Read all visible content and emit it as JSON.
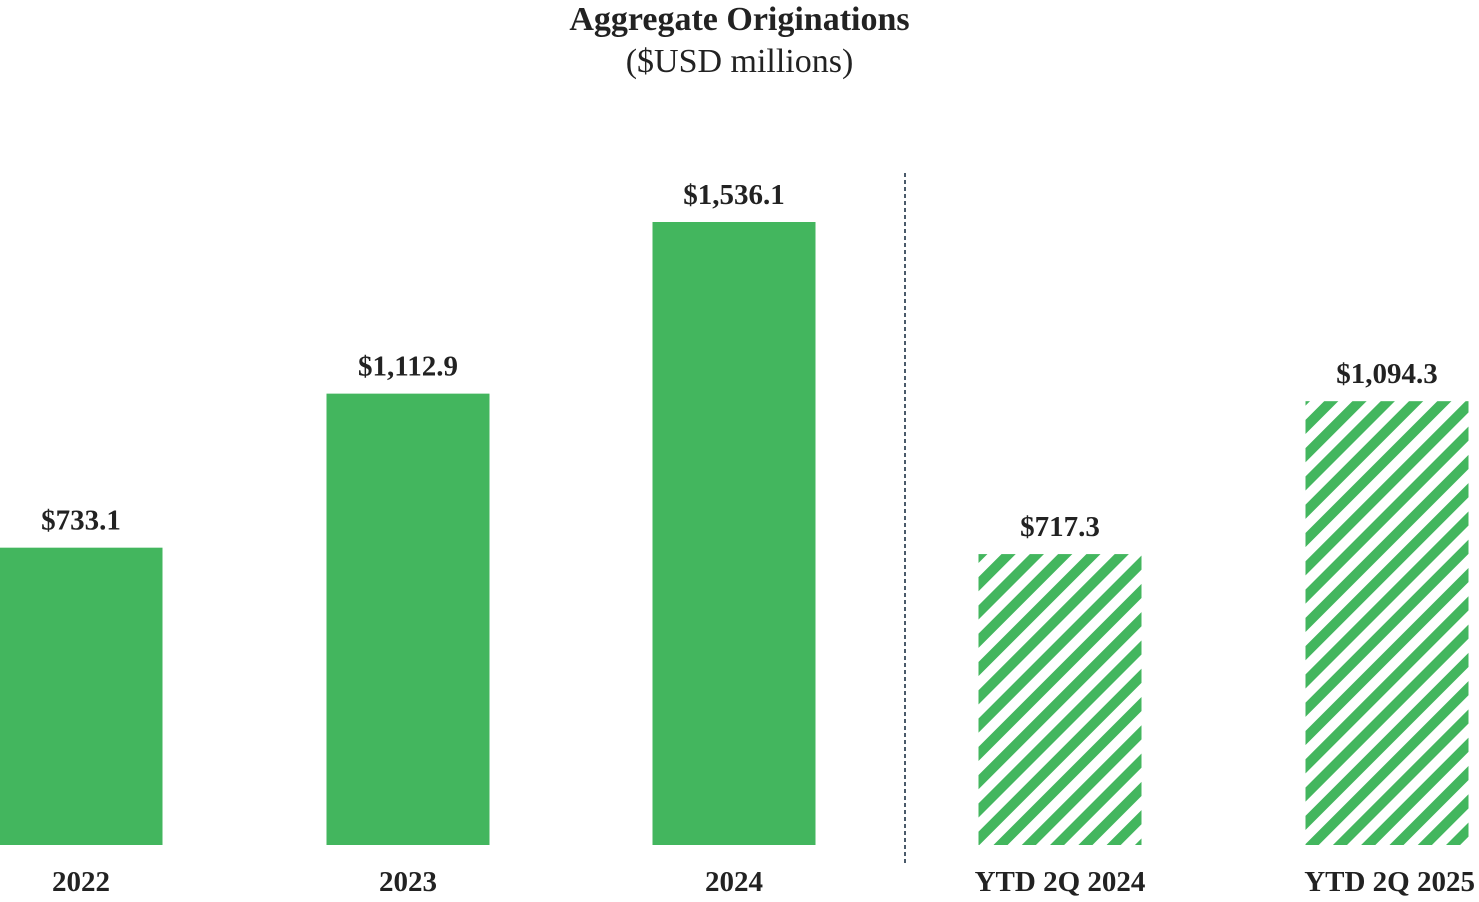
{
  "chart_data": {
    "type": "bar",
    "title": "Aggregate Originations",
    "subtitle": "($USD millions)",
    "categories": [
      "2022",
      "2023",
      "2024",
      "YTD 2Q 2024",
      "YTD 2Q 2025"
    ],
    "values": [
      733.1,
      1112.9,
      1536.1,
      717.3,
      1094.3
    ],
    "value_labels": [
      "$733.1",
      "$1,112.9",
      "$1,536.1",
      "$717.3",
      "$1,094.3"
    ],
    "bar_styles": [
      "solid",
      "solid",
      "solid",
      "hatched",
      "hatched"
    ],
    "xlabel": "",
    "ylabel": "",
    "ylim": [
      0,
      1536.1
    ],
    "grid": false,
    "legend": "none",
    "divider": "dashed vertical line between 2024 and YTD 2Q 2024",
    "colors": {
      "bar": "#43b65e",
      "text": "#222222",
      "divider": "#4a5a6a"
    }
  }
}
